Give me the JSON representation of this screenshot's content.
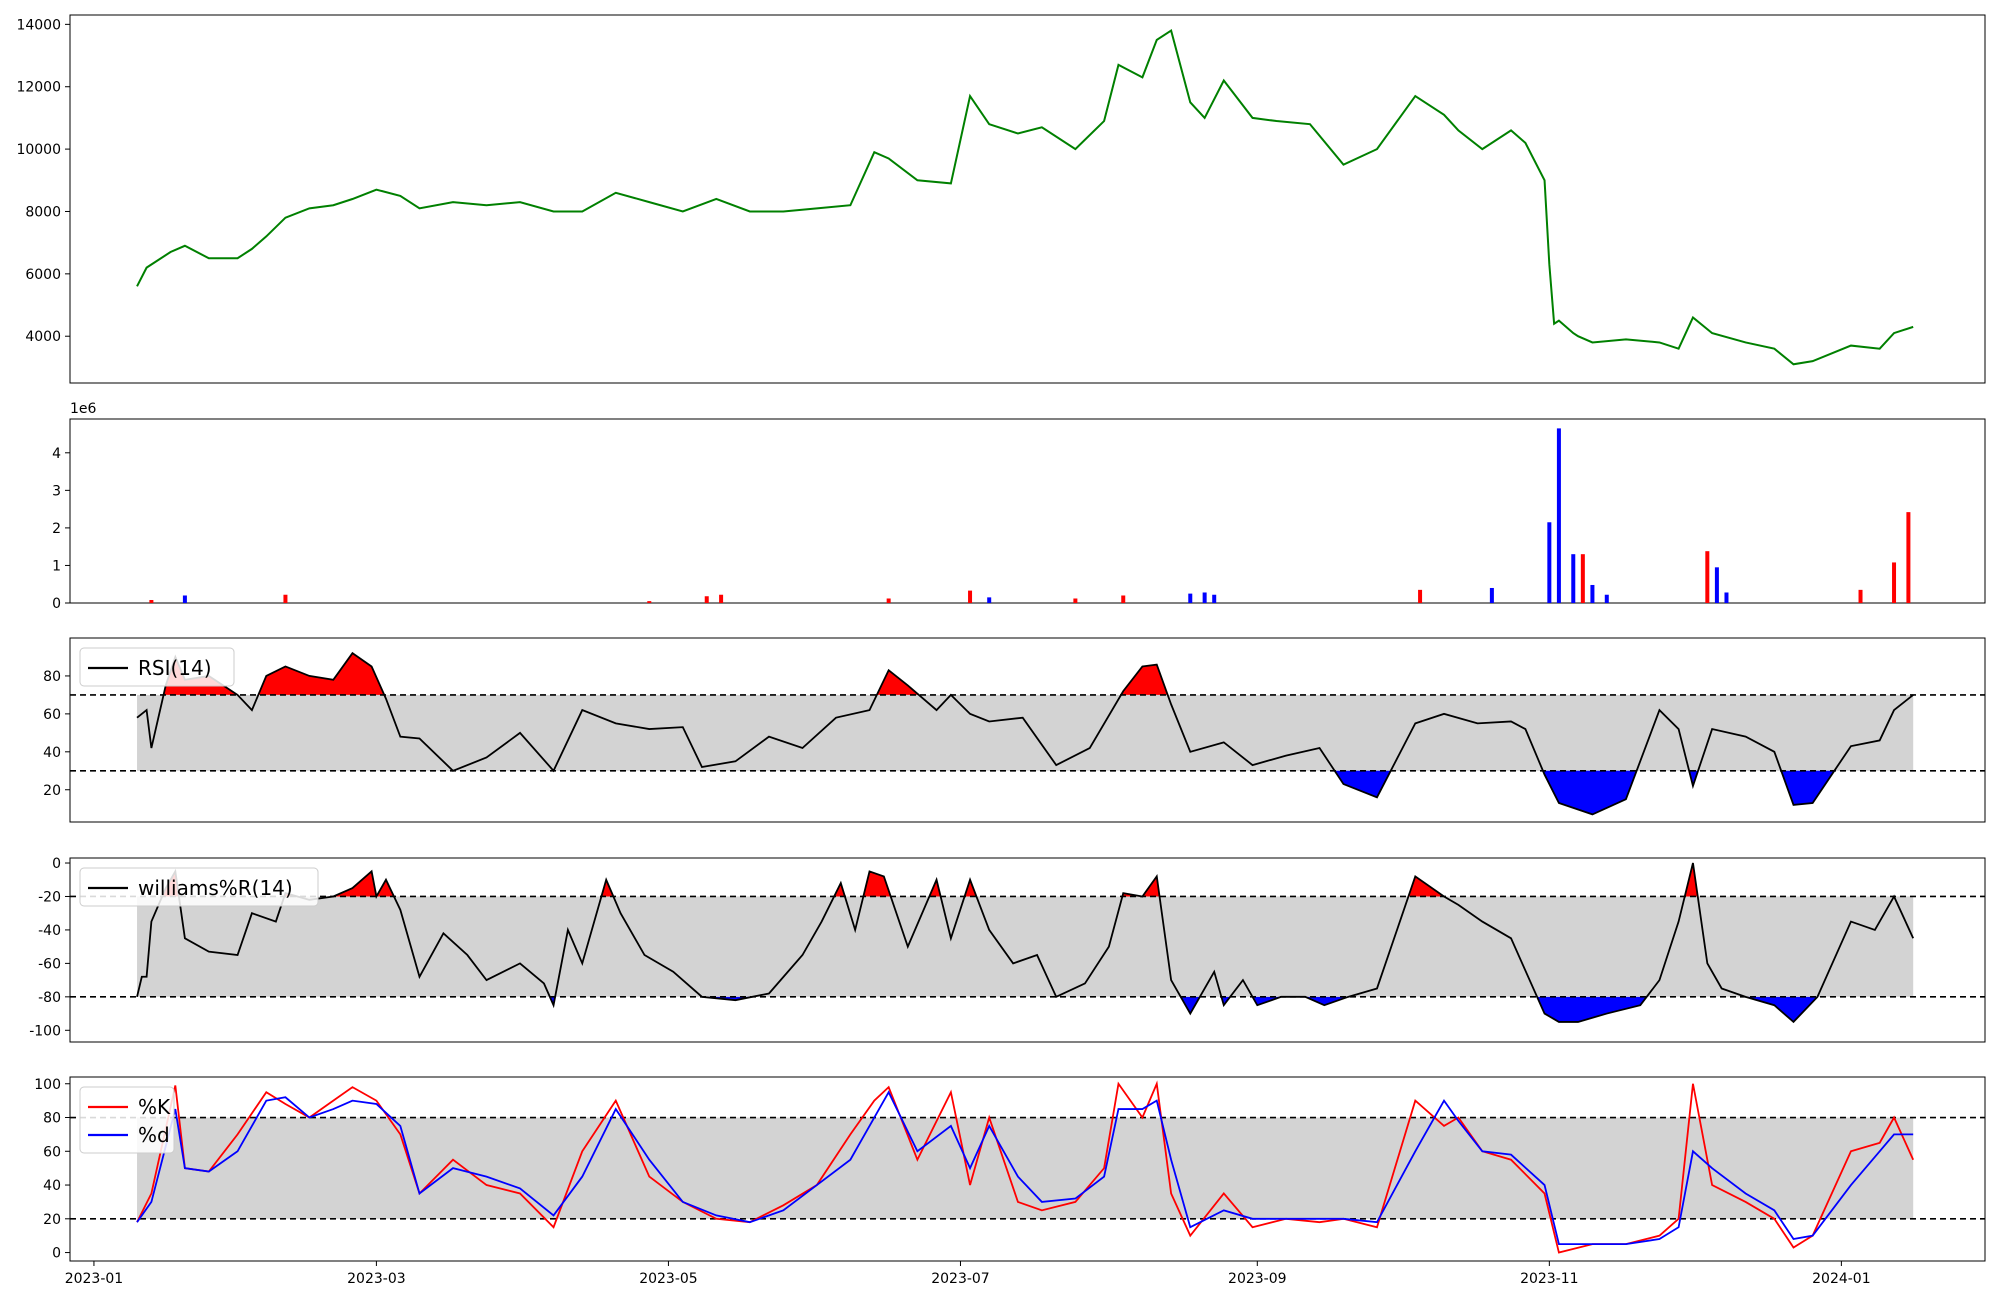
{
  "chart_data": [
    {
      "id": "price",
      "type": "line",
      "title": "",
      "ylim": [
        2500,
        14300
      ],
      "yticks": [
        4000,
        6000,
        8000,
        10000,
        12000,
        14000
      ],
      "color": "#008000",
      "x": [
        "2023-01-10",
        "2023-01-12",
        "2023-01-17",
        "2023-01-20",
        "2023-01-25",
        "2023-01-31",
        "2023-02-03",
        "2023-02-06",
        "2023-02-10",
        "2023-02-15",
        "2023-02-20",
        "2023-02-24",
        "2023-03-01",
        "2023-03-06",
        "2023-03-10",
        "2023-03-17",
        "2023-03-24",
        "2023-03-31",
        "2023-04-07",
        "2023-04-13",
        "2023-04-20",
        "2023-04-27",
        "2023-05-04",
        "2023-05-11",
        "2023-05-18",
        "2023-05-25",
        "2023-06-01",
        "2023-06-08",
        "2023-06-13",
        "2023-06-16",
        "2023-06-22",
        "2023-06-29",
        "2023-07-03",
        "2023-07-07",
        "2023-07-13",
        "2023-07-18",
        "2023-07-25",
        "2023-07-31",
        "2023-08-03",
        "2023-08-08",
        "2023-08-11",
        "2023-08-14",
        "2023-08-18",
        "2023-08-21",
        "2023-08-25",
        "2023-08-31",
        "2023-09-05",
        "2023-09-12",
        "2023-09-19",
        "2023-09-26",
        "2023-10-04",
        "2023-10-10",
        "2023-10-13",
        "2023-10-18",
        "2023-10-24",
        "2023-10-27",
        "2023-10-31",
        "2023-11-01",
        "2023-11-02",
        "2023-11-03",
        "2023-11-06",
        "2023-11-07",
        "2023-11-10",
        "2023-11-17",
        "2023-11-24",
        "2023-11-28",
        "2023-12-01",
        "2023-12-05",
        "2023-12-12",
        "2023-12-18",
        "2023-12-22",
        "2023-12-26",
        "2024-01-03",
        "2024-01-09",
        "2024-01-12",
        "2024-01-16"
      ],
      "values": [
        5600,
        6200,
        6700,
        6900,
        6500,
        6500,
        6800,
        7200,
        7800,
        8100,
        8200,
        8400,
        8700,
        8500,
        8100,
        8300,
        8200,
        8300,
        8000,
        8000,
        8600,
        8300,
        8000,
        8400,
        8000,
        8000,
        8100,
        8200,
        9900,
        9700,
        9000,
        8900,
        11700,
        10800,
        10500,
        10700,
        10000,
        10900,
        12700,
        12300,
        13500,
        13800,
        11500,
        11000,
        12200,
        11000,
        10900,
        10800,
        9500,
        10000,
        11700,
        11100,
        10600,
        10000,
        10600,
        10200,
        9000,
        6300,
        4400,
        4500,
        4100,
        4000,
        3800,
        3900,
        3800,
        3600,
        4600,
        4100,
        3800,
        3600,
        3100,
        3200,
        3700,
        3600,
        4100,
        4300
      ]
    },
    {
      "id": "volume",
      "type": "bar",
      "title": "",
      "offset_label": "1e6",
      "ylim": [
        0,
        4.9
      ],
      "yticks": [
        0,
        1,
        2,
        3,
        4
      ],
      "up_color": "#ff0000",
      "down_color": "#0000ff",
      "x": [
        "2023-01-13",
        "2023-01-20",
        "2023-02-10",
        "2023-04-27",
        "2023-05-09",
        "2023-05-12",
        "2023-06-16",
        "2023-07-03",
        "2023-07-07",
        "2023-07-25",
        "2023-08-04",
        "2023-08-18",
        "2023-08-21",
        "2023-08-23",
        "2023-10-05",
        "2023-10-20",
        "2023-11-01",
        "2023-11-03",
        "2023-11-06",
        "2023-11-08",
        "2023-11-10",
        "2023-11-13",
        "2023-12-04",
        "2023-12-06",
        "2023-12-08",
        "2024-01-05",
        "2024-01-12",
        "2024-01-15"
      ],
      "values": [
        0.08,
        0.2,
        0.22,
        0.05,
        0.18,
        0.22,
        0.12,
        0.33,
        0.15,
        0.12,
        0.2,
        0.25,
        0.28,
        0.22,
        0.35,
        0.4,
        2.15,
        4.65,
        1.3,
        1.3,
        0.48,
        0.22,
        1.38,
        0.95,
        0.28,
        0.35,
        1.08,
        2.42
      ],
      "directions": [
        "up",
        "down",
        "up",
        "up",
        "up",
        "up",
        "up",
        "up",
        "down",
        "up",
        "up",
        "down",
        "down",
        "down",
        "up",
        "down",
        "down",
        "down",
        "down",
        "up",
        "down",
        "down",
        "up",
        "down",
        "down",
        "up",
        "up",
        "up"
      ]
    },
    {
      "id": "rsi",
      "type": "line",
      "title": "",
      "legend": [
        "RSI(14)"
      ],
      "ylim": [
        3,
        100
      ],
      "yticks": [
        20,
        40,
        60,
        80
      ],
      "overbought": 70,
      "oversold": 30,
      "x": [
        "2023-01-10",
        "2023-01-12",
        "2023-01-13",
        "2023-01-16",
        "2023-01-18",
        "2023-01-20",
        "2023-01-25",
        "2023-01-31",
        "2023-02-03",
        "2023-02-06",
        "2023-02-10",
        "2023-02-15",
        "2023-02-20",
        "2023-02-24",
        "2023-02-28",
        "2023-03-03",
        "2023-03-06",
        "2023-03-10",
        "2023-03-17",
        "2023-03-24",
        "2023-03-31",
        "2023-04-07",
        "2023-04-13",
        "2023-04-20",
        "2023-04-27",
        "2023-05-04",
        "2023-05-08",
        "2023-05-15",
        "2023-05-22",
        "2023-05-29",
        "2023-06-05",
        "2023-06-12",
        "2023-06-16",
        "2023-06-20",
        "2023-06-26",
        "2023-06-29",
        "2023-07-03",
        "2023-07-07",
        "2023-07-14",
        "2023-07-21",
        "2023-07-28",
        "2023-08-04",
        "2023-08-08",
        "2023-08-11",
        "2023-08-14",
        "2023-08-18",
        "2023-08-25",
        "2023-08-31",
        "2023-09-07",
        "2023-09-14",
        "2023-09-19",
        "2023-09-26",
        "2023-10-04",
        "2023-10-10",
        "2023-10-17",
        "2023-10-24",
        "2023-10-27",
        "2023-10-31",
        "2023-11-03",
        "2023-11-10",
        "2023-11-17",
        "2023-11-24",
        "2023-11-28",
        "2023-12-01",
        "2023-12-05",
        "2023-12-12",
        "2023-12-18",
        "2023-12-22",
        "2023-12-26",
        "2024-01-03",
        "2024-01-09",
        "2024-01-12",
        "2024-01-16"
      ],
      "values": [
        58,
        62,
        42,
        75,
        90,
        78,
        80,
        70,
        62,
        80,
        85,
        80,
        78,
        92,
        85,
        68,
        48,
        47,
        30,
        37,
        50,
        30,
        62,
        55,
        52,
        53,
        32,
        35,
        48,
        42,
        58,
        62,
        83,
        75,
        62,
        70,
        60,
        56,
        58,
        33,
        42,
        72,
        85,
        86,
        65,
        40,
        45,
        33,
        38,
        42,
        23,
        16,
        55,
        60,
        55,
        56,
        52,
        28,
        13,
        7,
        15,
        62,
        52,
        22,
        52,
        48,
        40,
        12,
        13,
        43,
        46,
        62,
        70
      ]
    },
    {
      "id": "williams",
      "type": "line",
      "title": "",
      "legend": [
        "williams%R(14)"
      ],
      "ylim": [
        -107,
        3
      ],
      "yticks": [
        0,
        -20,
        -40,
        -60,
        -80,
        -100
      ],
      "overbought": -20,
      "oversold": -80,
      "x": [
        "2023-01-10",
        "2023-01-11",
        "2023-01-12",
        "2023-01-13",
        "2023-01-16",
        "2023-01-18",
        "2023-01-20",
        "2023-01-25",
        "2023-01-31",
        "2023-02-03",
        "2023-02-08",
        "2023-02-10",
        "2023-02-15",
        "2023-02-20",
        "2023-02-24",
        "2023-02-28",
        "2023-03-01",
        "2023-03-03",
        "2023-03-06",
        "2023-03-10",
        "2023-03-15",
        "2023-03-20",
        "2023-03-24",
        "2023-03-31",
        "2023-04-05",
        "2023-04-07",
        "2023-04-10",
        "2023-04-13",
        "2023-04-18",
        "2023-04-21",
        "2023-04-26",
        "2023-05-02",
        "2023-05-08",
        "2023-05-15",
        "2023-05-22",
        "2023-05-29",
        "2023-06-02",
        "2023-06-06",
        "2023-06-09",
        "2023-06-12",
        "2023-06-15",
        "2023-06-20",
        "2023-06-26",
        "2023-06-29",
        "2023-07-03",
        "2023-07-07",
        "2023-07-12",
        "2023-07-17",
        "2023-07-21",
        "2023-07-27",
        "2023-08-01",
        "2023-08-04",
        "2023-08-08",
        "2023-08-11",
        "2023-08-14",
        "2023-08-18",
        "2023-08-23",
        "2023-08-25",
        "2023-08-29",
        "2023-09-01",
        "2023-09-06",
        "2023-09-11",
        "2023-09-15",
        "2023-09-20",
        "2023-09-26",
        "2023-10-04",
        "2023-10-10",
        "2023-10-13",
        "2023-10-18",
        "2023-10-24",
        "2023-10-31",
        "2023-11-03",
        "2023-11-07",
        "2023-11-13",
        "2023-11-20",
        "2023-11-24",
        "2023-11-28",
        "2023-12-01",
        "2023-12-04",
        "2023-12-07",
        "2023-12-12",
        "2023-12-18",
        "2023-12-22",
        "2023-12-27",
        "2024-01-03",
        "2024-01-08",
        "2024-01-12",
        "2024-01-16"
      ],
      "values": [
        -80,
        -68,
        -68,
        -35,
        -15,
        -5,
        -45,
        -53,
        -55,
        -30,
        -35,
        -18,
        -22,
        -20,
        -15,
        -5,
        -20,
        -10,
        -28,
        -68,
        -42,
        -55,
        -70,
        -60,
        -72,
        -85,
        -40,
        -60,
        -10,
        -30,
        -55,
        -65,
        -80,
        -82,
        -78,
        -55,
        -35,
        -12,
        -40,
        -5,
        -8,
        -50,
        -10,
        -45,
        -10,
        -40,
        -60,
        -55,
        -80,
        -72,
        -50,
        -18,
        -20,
        -8,
        -70,
        -90,
        -65,
        -85,
        -70,
        -85,
        -80,
        -80,
        -85,
        -80,
        -75,
        -8,
        -20,
        -25,
        -35,
        -45,
        -90,
        -95,
        -95,
        -90,
        -85,
        -70,
        -35,
        0,
        -60,
        -75,
        -80,
        -85,
        -95,
        -80,
        -35,
        -40,
        -20,
        -45
      ]
    },
    {
      "id": "stochastic",
      "type": "line",
      "title": "",
      "ylim": [
        -5,
        104
      ],
      "yticks": [
        0,
        20,
        40,
        60,
        80,
        100
      ],
      "upper": 80,
      "lower": 20,
      "xaxis_ticks": [
        "2023-01",
        "2023-03",
        "2023-05",
        "2023-07",
        "2023-09",
        "2023-11",
        "2024-01"
      ],
      "x": [
        "2023-01-10",
        "2023-01-13",
        "2023-01-18",
        "2023-01-20",
        "2023-01-25",
        "2023-01-31",
        "2023-02-06",
        "2023-02-10",
        "2023-02-15",
        "2023-02-20",
        "2023-02-24",
        "2023-03-01",
        "2023-03-06",
        "2023-03-10",
        "2023-03-17",
        "2023-03-24",
        "2023-03-31",
        "2023-04-07",
        "2023-04-13",
        "2023-04-20",
        "2023-04-27",
        "2023-05-04",
        "2023-05-11",
        "2023-05-18",
        "2023-05-25",
        "2023-06-01",
        "2023-06-08",
        "2023-06-13",
        "2023-06-16",
        "2023-06-22",
        "2023-06-29",
        "2023-07-03",
        "2023-07-07",
        "2023-07-13",
        "2023-07-18",
        "2023-07-25",
        "2023-07-31",
        "2023-08-03",
        "2023-08-08",
        "2023-08-11",
        "2023-08-14",
        "2023-08-18",
        "2023-08-25",
        "2023-08-31",
        "2023-09-07",
        "2023-09-14",
        "2023-09-19",
        "2023-09-26",
        "2023-10-04",
        "2023-10-10",
        "2023-10-13",
        "2023-10-18",
        "2023-10-24",
        "2023-10-31",
        "2023-11-03",
        "2023-11-10",
        "2023-11-17",
        "2023-11-24",
        "2023-11-28",
        "2023-12-01",
        "2023-12-05",
        "2023-12-12",
        "2023-12-18",
        "2023-12-22",
        "2023-12-26",
        "2024-01-03",
        "2024-01-09",
        "2024-01-12",
        "2024-01-16"
      ],
      "series": [
        {
          "name": "%K",
          "color": "#ff0000",
          "values": [
            18,
            35,
            99,
            50,
            48,
            70,
            95,
            88,
            80,
            90,
            98,
            90,
            70,
            35,
            55,
            40,
            35,
            15,
            60,
            90,
            45,
            30,
            20,
            18,
            28,
            40,
            70,
            90,
            98,
            55,
            95,
            40,
            80,
            30,
            25,
            30,
            50,
            100,
            80,
            100,
            35,
            10,
            35,
            15,
            20,
            18,
            20,
            15,
            90,
            75,
            80,
            60,
            55,
            35,
            0,
            5,
            5,
            10,
            20,
            100,
            40,
            30,
            20,
            3,
            10,
            60,
            65,
            80,
            55
          ]
        },
        {
          "name": "%d",
          "color": "#0000ff",
          "values": [
            18,
            30,
            85,
            50,
            48,
            60,
            90,
            92,
            80,
            85,
            90,
            88,
            75,
            35,
            50,
            45,
            38,
            22,
            45,
            85,
            55,
            30,
            22,
            18,
            25,
            40,
            55,
            80,
            95,
            60,
            75,
            50,
            75,
            45,
            30,
            32,
            45,
            85,
            85,
            90,
            55,
            15,
            25,
            20,
            20,
            20,
            20,
            18,
            60,
            90,
            78,
            60,
            58,
            40,
            5,
            5,
            5,
            8,
            15,
            60,
            50,
            35,
            25,
            8,
            10,
            40,
            60,
            70,
            70
          ]
        }
      ]
    }
  ]
}
